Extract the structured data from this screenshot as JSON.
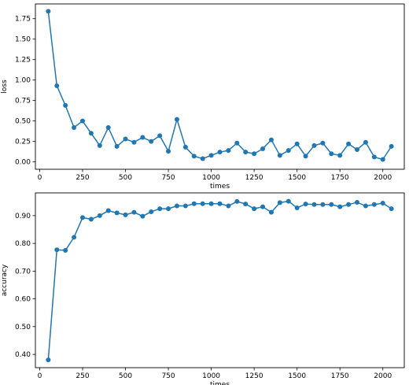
{
  "chart_data": [
    {
      "type": "line",
      "xlabel": "times",
      "ylabel": "loss",
      "xlim": [
        -25,
        2125
      ],
      "ylim": [
        -0.09,
        1.93
      ],
      "xticks": [
        0,
        250,
        500,
        750,
        1000,
        1250,
        1500,
        1750,
        2000
      ],
      "yticks": [
        0.0,
        0.25,
        0.5,
        0.75,
        1.0,
        1.25,
        1.5,
        1.75
      ],
      "grid": false,
      "color": "#1f77b4",
      "marker": "circle",
      "x": [
        50,
        100,
        150,
        200,
        250,
        300,
        350,
        400,
        450,
        500,
        550,
        600,
        650,
        700,
        750,
        800,
        850,
        900,
        950,
        1000,
        1050,
        1100,
        1150,
        1200,
        1250,
        1300,
        1350,
        1400,
        1450,
        1500,
        1550,
        1600,
        1650,
        1700,
        1750,
        1800,
        1850,
        1900,
        1950,
        2000,
        2050
      ],
      "y": [
        1.84,
        0.93,
        0.69,
        0.42,
        0.5,
        0.35,
        0.2,
        0.42,
        0.19,
        0.28,
        0.24,
        0.3,
        0.25,
        0.32,
        0.13,
        0.52,
        0.18,
        0.07,
        0.04,
        0.08,
        0.12,
        0.14,
        0.23,
        0.12,
        0.1,
        0.16,
        0.27,
        0.08,
        0.14,
        0.22,
        0.07,
        0.2,
        0.23,
        0.1,
        0.08,
        0.22,
        0.15,
        0.24,
        0.06,
        0.03,
        0.19
      ]
    },
    {
      "type": "line",
      "xlabel": "times",
      "ylabel": "accuracy",
      "xlim": [
        -25,
        2125
      ],
      "ylim": [
        0.352,
        0.982
      ],
      "xticks": [
        0,
        250,
        500,
        750,
        1000,
        1250,
        1500,
        1750,
        2000
      ],
      "yticks": [
        0.4,
        0.5,
        0.6,
        0.7,
        0.8,
        0.9
      ],
      "grid": false,
      "color": "#1f77b4",
      "marker": "circle",
      "x": [
        50,
        100,
        150,
        200,
        250,
        300,
        350,
        400,
        450,
        500,
        550,
        600,
        650,
        700,
        750,
        800,
        850,
        900,
        950,
        1000,
        1050,
        1100,
        1150,
        1200,
        1250,
        1300,
        1350,
        1400,
        1450,
        1500,
        1550,
        1600,
        1650,
        1700,
        1750,
        1800,
        1850,
        1900,
        1950,
        2000,
        2050
      ],
      "y": [
        0.38,
        0.777,
        0.775,
        0.822,
        0.893,
        0.887,
        0.9,
        0.918,
        0.91,
        0.903,
        0.912,
        0.898,
        0.914,
        0.925,
        0.925,
        0.935,
        0.935,
        0.943,
        0.943,
        0.943,
        0.943,
        0.935,
        0.951,
        0.942,
        0.925,
        0.932,
        0.912,
        0.947,
        0.952,
        0.928,
        0.942,
        0.94,
        0.94,
        0.94,
        0.932,
        0.94,
        0.948,
        0.935,
        0.94,
        0.945,
        0.925
      ]
    }
  ]
}
